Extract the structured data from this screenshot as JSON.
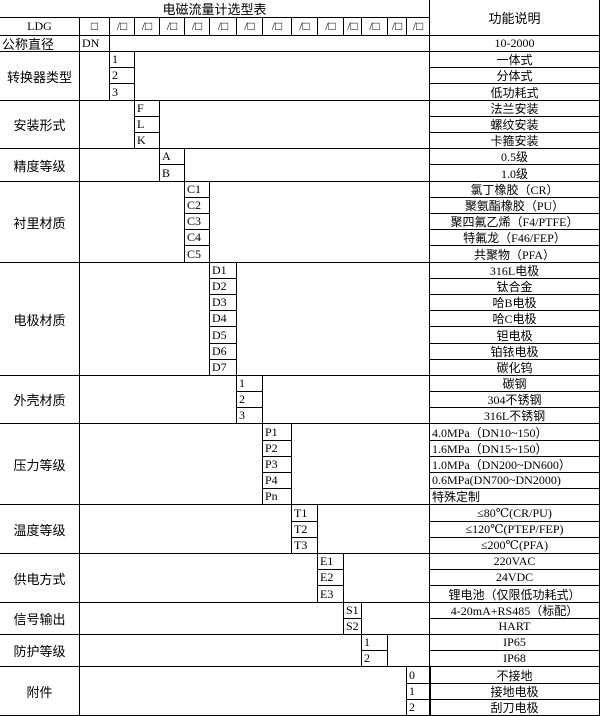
{
  "title": "电磁流量计选型表",
  "function_header": "功能说明",
  "model_prefix": "LDG",
  "model_boxes": [
    "□",
    "/□",
    "/□",
    "/□",
    "/□",
    "/□",
    "/□",
    "/□",
    "/□",
    "/□",
    "/□",
    "/□",
    "/□",
    "/□"
  ],
  "nominal": {
    "label": "公称直径",
    "code": "DN",
    "desc": "10-2000"
  },
  "sections": [
    {
      "label": "转换器类型",
      "col": 0,
      "options": [
        {
          "code": "1",
          "desc": "一体式"
        },
        {
          "code": "2",
          "desc": "分体式"
        },
        {
          "code": "3",
          "desc": "低功耗式"
        }
      ]
    },
    {
      "label": "安装形式",
      "col": 1,
      "options": [
        {
          "code": "F",
          "desc": "法兰安装"
        },
        {
          "code": "L",
          "desc": "螺纹安装"
        },
        {
          "code": "K",
          "desc": "卡箍安装"
        }
      ]
    },
    {
      "label": "精度等级",
      "col": 2,
      "options": [
        {
          "code": "A",
          "desc": "0.5级"
        },
        {
          "code": "B",
          "desc": "1.0级"
        }
      ]
    },
    {
      "label": "衬里材质",
      "col": 3,
      "options": [
        {
          "code": "C1",
          "desc": "氯丁橡胶（CR）"
        },
        {
          "code": "C2",
          "desc": "聚氨酯橡胶（PU）"
        },
        {
          "code": "C3",
          "desc": "聚四氟乙烯（F4/PTFE）"
        },
        {
          "code": "C4",
          "desc": "特氟龙（F46/FEP）"
        },
        {
          "code": "C5",
          "desc": "共聚物（PFA）"
        }
      ]
    },
    {
      "label": "电极材质",
      "col": 4,
      "options": [
        {
          "code": "D1",
          "desc": "316L电极"
        },
        {
          "code": "D2",
          "desc": "钛合金"
        },
        {
          "code": "D3",
          "desc": "哈B电极"
        },
        {
          "code": "D4",
          "desc": "哈C电极"
        },
        {
          "code": "D5",
          "desc": "钽电极"
        },
        {
          "code": "D6",
          "desc": "铂铱电极"
        },
        {
          "code": "D7",
          "desc": "碳化钨"
        }
      ]
    },
    {
      "label": "外壳材质",
      "col": 5,
      "options": [
        {
          "code": "1",
          "desc": "碳钢"
        },
        {
          "code": "2",
          "desc": "304不锈钢"
        },
        {
          "code": "3",
          "desc": "316L不锈钢"
        }
      ]
    },
    {
      "label": "压力等级",
      "col": 6,
      "desc_align": "left",
      "options": [
        {
          "code": "P1",
          "desc": "4.0MPa（DN10~150）"
        },
        {
          "code": "P2",
          "desc": "1.6MPa（DN15~150）"
        },
        {
          "code": "P3",
          "desc": "1.0MPa（DN200~DN600）"
        },
        {
          "code": "P4",
          "desc": "0.6MPa(DN700~DN2000)"
        },
        {
          "code": "Pn",
          "desc": "特殊定制"
        }
      ]
    },
    {
      "label": "温度等级",
      "col": 7,
      "options": [
        {
          "code": "T1",
          "desc": "≤80℃(CR/PU)"
        },
        {
          "code": "T2",
          "desc": "≤120℃(PTEP/FEP)"
        },
        {
          "code": "T3",
          "desc": "≤200℃(PFA)"
        }
      ]
    },
    {
      "label": "供电方式",
      "col": 8,
      "options": [
        {
          "code": "E1",
          "desc": "220VAC"
        },
        {
          "code": "E2",
          "desc": "24VDC"
        },
        {
          "code": "E3",
          "desc": "锂电池（仅限低功耗式）"
        }
      ]
    },
    {
      "label": "信号输出",
      "col": 9,
      "options": [
        {
          "code": "S1",
          "desc": "4-20mA+RS485（标配）"
        },
        {
          "code": "S2",
          "desc": "HART"
        }
      ]
    },
    {
      "label": "防护等级",
      "col": 10,
      "options": [
        {
          "code": "1",
          "desc": "IP65"
        },
        {
          "code": "2",
          "desc": "IP68"
        }
      ]
    },
    {
      "label": "附件",
      "col": 12,
      "options": [
        {
          "code": "0",
          "desc": "不接地"
        },
        {
          "code": "1",
          "desc": "接地电极"
        },
        {
          "code": "2",
          "desc": "刮刀电极"
        }
      ]
    }
  ]
}
